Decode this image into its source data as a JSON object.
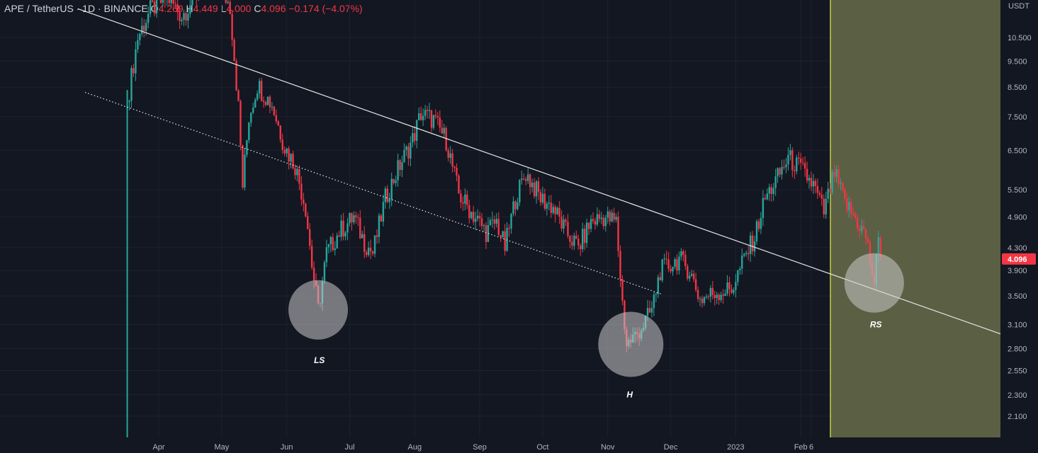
{
  "header": {
    "symbol": "APE / TetherUS · 1D · BINANCE",
    "o_label": "O",
    "o_value": "4.269",
    "h_label": "H",
    "h_value": "4.449",
    "l_label": "L",
    "l_value": "4.000",
    "c_label": "C",
    "c_value": "4.096",
    "change": "−0.174 (−4.07%)"
  },
  "chart_data": {
    "type": "candlestick",
    "symbol": "APE / TetherUS",
    "interval": "1D",
    "exchange": "BINANCE",
    "currency_label": "USDT",
    "y_scale": "log",
    "y_ticks": [
      "10.500",
      "9.500",
      "8.500",
      "7.500",
      "6.500",
      "5.500",
      "4.900",
      "4.300",
      "3.900",
      "3.500",
      "3.100",
      "2.800",
      "2.550",
      "2.300",
      "2.100"
    ],
    "x_ticks": [
      "Apr",
      "May",
      "Jun",
      "Jul",
      "Aug",
      "Sep",
      "Oct",
      "Nov",
      "Dec",
      "2023",
      "Feb",
      "6"
    ],
    "last_price": "4.096",
    "colors": {
      "up": "#26a69a",
      "down": "#f23645",
      "background": "#131722",
      "forecast_zone": "#5b5f44",
      "forecast_border": "#c8d23c"
    },
    "close_series": [
      {
        "date": "2022-03-18",
        "close": 8.4
      },
      {
        "date": "2022-03-22",
        "close": 10.5
      },
      {
        "date": "2022-03-28",
        "close": 11.8
      },
      {
        "date": "2022-04-05",
        "close": 12.5
      },
      {
        "date": "2022-04-12",
        "close": 11.5
      },
      {
        "date": "2022-04-20",
        "close": 12.8
      },
      {
        "date": "2022-04-28",
        "close": 13.5
      },
      {
        "date": "2022-05-05",
        "close": 12.0
      },
      {
        "date": "2022-05-09",
        "close": 7.8
      },
      {
        "date": "2022-05-11",
        "close": 5.6
      },
      {
        "date": "2022-05-14",
        "close": 7.5
      },
      {
        "date": "2022-05-18",
        "close": 8.6
      },
      {
        "date": "2022-05-25",
        "close": 7.9
      },
      {
        "date": "2022-05-31",
        "close": 6.6
      },
      {
        "date": "2022-06-05",
        "close": 6.1
      },
      {
        "date": "2022-06-10",
        "close": 5.1
      },
      {
        "date": "2022-06-13",
        "close": 4.0
      },
      {
        "date": "2022-06-16",
        "close": 3.3
      },
      {
        "date": "2022-06-20",
        "close": 4.2
      },
      {
        "date": "2022-06-26",
        "close": 4.6
      },
      {
        "date": "2022-07-03",
        "close": 4.9
      },
      {
        "date": "2022-07-08",
        "close": 4.4
      },
      {
        "date": "2022-07-12",
        "close": 4.2
      },
      {
        "date": "2022-07-18",
        "close": 5.3
      },
      {
        "date": "2022-07-24",
        "close": 6.0
      },
      {
        "date": "2022-07-31",
        "close": 6.8
      },
      {
        "date": "2022-08-04",
        "close": 7.6
      },
      {
        "date": "2022-08-10",
        "close": 7.4
      },
      {
        "date": "2022-08-16",
        "close": 6.8
      },
      {
        "date": "2022-08-22",
        "close": 5.4
      },
      {
        "date": "2022-08-28",
        "close": 5.0
      },
      {
        "date": "2022-09-04",
        "close": 4.6
      },
      {
        "date": "2022-09-09",
        "close": 4.8
      },
      {
        "date": "2022-09-13",
        "close": 4.3
      },
      {
        "date": "2022-09-18",
        "close": 5.3
      },
      {
        "date": "2022-09-23",
        "close": 5.9
      },
      {
        "date": "2022-09-30",
        "close": 5.3
      },
      {
        "date": "2022-10-06",
        "close": 5.1
      },
      {
        "date": "2022-10-12",
        "close": 4.6
      },
      {
        "date": "2022-10-18",
        "close": 4.3
      },
      {
        "date": "2022-10-24",
        "close": 4.8
      },
      {
        "date": "2022-10-30",
        "close": 4.9
      },
      {
        "date": "2022-11-05",
        "close": 4.8
      },
      {
        "date": "2022-11-08",
        "close": 3.4
      },
      {
        "date": "2022-11-10",
        "close": 2.85
      },
      {
        "date": "2022-11-14",
        "close": 2.95
      },
      {
        "date": "2022-11-18",
        "close": 3.1
      },
      {
        "date": "2022-11-22",
        "close": 3.3
      },
      {
        "date": "2022-11-26",
        "close": 3.9
      },
      {
        "date": "2022-12-01",
        "close": 4.0
      },
      {
        "date": "2022-12-05",
        "close": 4.1
      },
      {
        "date": "2022-12-10",
        "close": 3.9
      },
      {
        "date": "2022-12-15",
        "close": 3.45
      },
      {
        "date": "2022-12-22",
        "close": 3.55
      },
      {
        "date": "2022-12-30",
        "close": 3.6
      },
      {
        "date": "2023-01-05",
        "close": 4.1
      },
      {
        "date": "2023-01-10",
        "close": 4.5
      },
      {
        "date": "2023-01-15",
        "close": 5.3
      },
      {
        "date": "2023-01-20",
        "close": 5.7
      },
      {
        "date": "2023-01-26",
        "close": 6.3
      },
      {
        "date": "2023-02-01",
        "close": 6.0
      },
      {
        "date": "2023-02-07",
        "close": 5.6
      },
      {
        "date": "2023-02-12",
        "close": 5.0
      },
      {
        "date": "2023-02-17",
        "close": 5.9
      },
      {
        "date": "2023-02-22",
        "close": 5.2
      },
      {
        "date": "2023-02-28",
        "close": 4.8
      },
      {
        "date": "2023-03-04",
        "close": 4.5
      },
      {
        "date": "2023-03-08",
        "close": 3.7
      },
      {
        "date": "2023-03-10",
        "close": 4.4
      },
      {
        "date": "2023-03-12",
        "close": 4.096
      }
    ],
    "annotations": [
      {
        "label": "LS",
        "date": "2022-06-16",
        "price": 3.3
      },
      {
        "label": "H",
        "date": "2022-11-12",
        "price": 2.85
      },
      {
        "label": "RS",
        "date": "2023-03-08",
        "price": 3.7
      }
    ],
    "trendlines": [
      {
        "name": "resistance",
        "style": "solid",
        "p1": {
          "date": "2022-05-10",
          "price": 9.3
        },
        "p2": {
          "date": "2023-03-08",
          "price": 3.6
        }
      },
      {
        "name": "support",
        "style": "dotted",
        "p1": {
          "date": "2022-05-10",
          "price": 6.6
        },
        "p2": {
          "date": "2022-12-18",
          "price": 3.3
        }
      }
    ]
  }
}
